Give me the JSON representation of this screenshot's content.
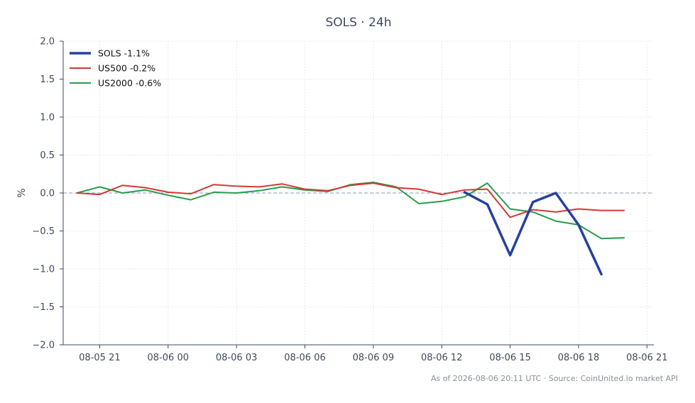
{
  "chart_data": {
    "type": "line",
    "title": "SOLS · 24h",
    "xlabel": "",
    "ylabel": "%",
    "ylim": [
      -2.0,
      2.0
    ],
    "yticks": [
      -2.0,
      -1.5,
      -1.0,
      -0.5,
      0.0,
      0.5,
      1.0,
      1.5,
      2.0
    ],
    "ytick_labels": [
      "−2.0",
      "−1.5",
      "−1.0",
      "−0.5",
      "0.0",
      "0.5",
      "1.0",
      "1.5",
      "2.0"
    ],
    "xlim": [
      "2026-08-05 19:24",
      "2026-08-06 21:18"
    ],
    "xticks": [
      "2026-08-05 21:00",
      "2026-08-06 00:00",
      "2026-08-06 03:00",
      "2026-08-06 06:00",
      "2026-08-06 09:00",
      "2026-08-06 12:00",
      "2026-08-06 15:00",
      "2026-08-06 18:00",
      "2026-08-06 21:00"
    ],
    "xtick_labels": [
      "08-05 21",
      "08-06 00",
      "08-06 03",
      "08-06 06",
      "08-06 09",
      "08-06 12",
      "08-06 15",
      "08-06 18",
      "08-06 21"
    ],
    "reference_line": 0.0,
    "grid": true,
    "legend_position": "top-left",
    "series": [
      {
        "name": "SOLS -1.1%",
        "color": "#2541a0",
        "x": [
          "2026-08-06 13:00",
          "2026-08-06 14:00",
          "2026-08-06 15:00",
          "2026-08-06 16:00",
          "2026-08-06 17:00",
          "2026-08-06 18:00",
          "2026-08-06 19:00"
        ],
        "values": [
          0.01,
          -0.15,
          -0.82,
          -0.12,
          0.0,
          -0.42,
          -1.07
        ]
      },
      {
        "name": "US500 -0.2%",
        "color": "#d03a35",
        "x": [
          "2026-08-05 20:00",
          "2026-08-05 21:00",
          "2026-08-05 22:00",
          "2026-08-05 23:00",
          "2026-08-06 00:00",
          "2026-08-06 01:00",
          "2026-08-06 02:00",
          "2026-08-06 03:00",
          "2026-08-06 04:00",
          "2026-08-06 05:00",
          "2026-08-06 06:00",
          "2026-08-06 07:00",
          "2026-08-06 08:00",
          "2026-08-06 09:00",
          "2026-08-06 10:00",
          "2026-08-06 11:00",
          "2026-08-06 12:00",
          "2026-08-06 13:00",
          "2026-08-06 14:00",
          "2026-08-06 15:00",
          "2026-08-06 16:00",
          "2026-08-06 17:00",
          "2026-08-06 18:00",
          "2026-08-06 19:00",
          "2026-08-06 20:00"
        ],
        "values": [
          0.0,
          -0.02,
          0.1,
          0.07,
          0.01,
          -0.01,
          0.11,
          0.09,
          0.08,
          0.12,
          0.05,
          0.03,
          0.1,
          0.13,
          0.07,
          0.05,
          -0.02,
          0.04,
          0.05,
          -0.32,
          -0.22,
          -0.25,
          -0.21,
          -0.23,
          -0.23
        ]
      },
      {
        "name": "US2000 -0.6%",
        "color": "#279c48",
        "x": [
          "2026-08-05 20:00",
          "2026-08-05 21:00",
          "2026-08-05 22:00",
          "2026-08-05 23:00",
          "2026-08-06 00:00",
          "2026-08-06 01:00",
          "2026-08-06 02:00",
          "2026-08-06 03:00",
          "2026-08-06 04:00",
          "2026-08-06 05:00",
          "2026-08-06 06:00",
          "2026-08-06 07:00",
          "2026-08-06 08:00",
          "2026-08-06 09:00",
          "2026-08-06 10:00",
          "2026-08-06 11:00",
          "2026-08-06 12:00",
          "2026-08-06 13:00",
          "2026-08-06 14:00",
          "2026-08-06 15:00",
          "2026-08-06 16:00",
          "2026-08-06 17:00",
          "2026-08-06 18:00",
          "2026-08-06 19:00",
          "2026-08-06 20:00"
        ],
        "values": [
          0.0,
          0.08,
          0.0,
          0.04,
          -0.03,
          -0.09,
          0.01,
          0.0,
          0.03,
          0.08,
          0.04,
          0.02,
          0.11,
          0.14,
          0.08,
          -0.14,
          -0.11,
          -0.05,
          0.13,
          -0.21,
          -0.25,
          -0.37,
          -0.42,
          -0.6,
          -0.59
        ]
      }
    ],
    "footer": "As of 2026-08-06 20:11 UTC · Source: CoinUnited.io market API"
  }
}
